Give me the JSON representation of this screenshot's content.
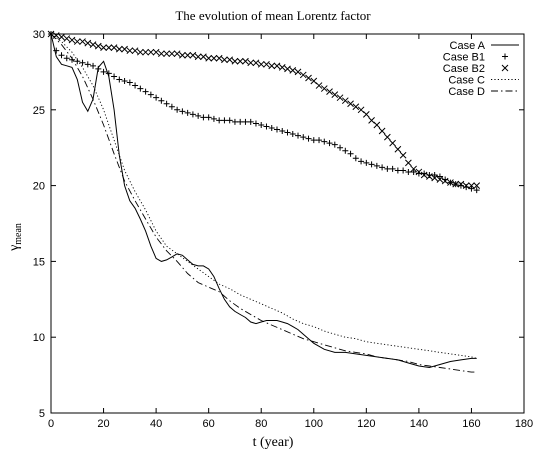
{
  "chart_data": {
    "type": "line",
    "title": "The evolution of mean Lorentz factor",
    "xlabel": "t (year)",
    "ylabel_main": "γ",
    "ylabel_sub": "mean",
    "xlim": [
      0,
      180
    ],
    "ylim": [
      5,
      30
    ],
    "x_ticks": [
      0,
      20,
      40,
      60,
      80,
      100,
      120,
      140,
      160,
      180
    ],
    "y_ticks": [
      5,
      10,
      15,
      20,
      25,
      30
    ],
    "grid": false,
    "legend_position": "top-right",
    "series": [
      {
        "name": "Case A",
        "style": "solid",
        "x": [
          0,
          2,
          4,
          6,
          8,
          10,
          12,
          14,
          16,
          18,
          20,
          22,
          24,
          26,
          28,
          30,
          32,
          34,
          36,
          38,
          40,
          42,
          44,
          46,
          48,
          50,
          52,
          54,
          56,
          58,
          60,
          62,
          64,
          66,
          68,
          70,
          72,
          74,
          76,
          78,
          80,
          82,
          84,
          86,
          88,
          90,
          92,
          94,
          96,
          98,
          100,
          104,
          108,
          112,
          116,
          120,
          124,
          128,
          132,
          136,
          140,
          144,
          148,
          152,
          156,
          160,
          162
        ],
        "y": [
          30,
          28.5,
          28,
          27.9,
          27.8,
          27.0,
          25.5,
          24.9,
          25.7,
          27.8,
          28.2,
          27.2,
          25.0,
          22.0,
          20.0,
          19.0,
          18.5,
          17.8,
          17.0,
          16.0,
          15.2,
          15.0,
          15.1,
          15.3,
          15.5,
          15.4,
          15.1,
          14.8,
          14.7,
          14.7,
          14.5,
          14.0,
          13.2,
          12.5,
          12.0,
          11.7,
          11.5,
          11.3,
          11.0,
          10.9,
          11.0,
          11.1,
          11.1,
          11.1,
          11.0,
          10.9,
          10.7,
          10.5,
          10.2,
          9.9,
          9.6,
          9.2,
          9.0,
          9.0,
          8.9,
          8.8,
          8.7,
          8.6,
          8.5,
          8.3,
          8.1,
          8.0,
          8.2,
          8.4,
          8.5,
          8.6,
          8.6
        ]
      },
      {
        "name": "Case B1",
        "style": "plus",
        "x": [
          0,
          2,
          4,
          6,
          8,
          10,
          12,
          14,
          16,
          18,
          20,
          22,
          24,
          26,
          28,
          30,
          32,
          34,
          36,
          38,
          40,
          42,
          44,
          46,
          48,
          50,
          52,
          54,
          56,
          58,
          60,
          62,
          64,
          66,
          68,
          70,
          72,
          74,
          76,
          78,
          80,
          82,
          84,
          86,
          88,
          90,
          92,
          94,
          96,
          98,
          100,
          102,
          104,
          106,
          108,
          110,
          112,
          114,
          116,
          118,
          120,
          122,
          124,
          126,
          128,
          130,
          132,
          134,
          136,
          138,
          140,
          142,
          144,
          146,
          148,
          150,
          152,
          154,
          156,
          158,
          160,
          162
        ],
        "y": [
          30,
          28.9,
          28.6,
          28.4,
          28.3,
          28.2,
          28.1,
          28.0,
          27.9,
          27.7,
          27.5,
          27.4,
          27.2,
          27.0,
          26.9,
          26.8,
          26.6,
          26.4,
          26.2,
          26.0,
          25.8,
          25.6,
          25.4,
          25.2,
          25.0,
          24.9,
          24.8,
          24.7,
          24.6,
          24.5,
          24.5,
          24.4,
          24.3,
          24.3,
          24.3,
          24.2,
          24.2,
          24.2,
          24.2,
          24.1,
          24.0,
          23.9,
          23.8,
          23.7,
          23.6,
          23.5,
          23.4,
          23.3,
          23.2,
          23.1,
          23.0,
          23.0,
          22.9,
          22.8,
          22.7,
          22.5,
          22.3,
          22.1,
          21.8,
          21.6,
          21.5,
          21.4,
          21.3,
          21.2,
          21.1,
          21.1,
          21.0,
          21.0,
          20.9,
          20.9,
          20.8,
          20.8,
          20.7,
          20.7,
          20.6,
          20.4,
          20.2,
          20.1,
          20.0,
          19.9,
          19.8,
          19.7
        ]
      },
      {
        "name": "Case B2",
        "style": "cross",
        "x": [
          0,
          2,
          4,
          6,
          8,
          10,
          12,
          14,
          16,
          18,
          20,
          22,
          24,
          26,
          28,
          30,
          32,
          34,
          36,
          38,
          40,
          42,
          44,
          46,
          48,
          50,
          52,
          54,
          56,
          58,
          60,
          62,
          64,
          66,
          68,
          70,
          72,
          74,
          76,
          78,
          80,
          82,
          84,
          86,
          88,
          90,
          92,
          94,
          96,
          98,
          100,
          102,
          104,
          106,
          108,
          110,
          112,
          114,
          116,
          118,
          120,
          122,
          124,
          126,
          128,
          130,
          132,
          134,
          136,
          138,
          140,
          142,
          144,
          146,
          148,
          150,
          152,
          154,
          156,
          158,
          160,
          162
        ],
        "y": [
          30,
          29.9,
          29.8,
          29.7,
          29.6,
          29.5,
          29.5,
          29.4,
          29.3,
          29.2,
          29.1,
          29.1,
          29.1,
          29.0,
          29.0,
          28.9,
          28.9,
          28.8,
          28.8,
          28.8,
          28.8,
          28.7,
          28.7,
          28.7,
          28.7,
          28.6,
          28.6,
          28.6,
          28.5,
          28.5,
          28.4,
          28.4,
          28.4,
          28.3,
          28.3,
          28.2,
          28.2,
          28.2,
          28.1,
          28.1,
          28.0,
          28.0,
          27.9,
          27.9,
          27.8,
          27.7,
          27.6,
          27.5,
          27.3,
          27.1,
          26.9,
          26.6,
          26.4,
          26.2,
          26.0,
          25.8,
          25.6,
          25.4,
          25.2,
          25.0,
          24.7,
          24.3,
          24.0,
          23.6,
          23.2,
          22.8,
          22.4,
          22.0,
          21.5,
          21.1,
          20.9,
          20.7,
          20.6,
          20.5,
          20.4,
          20.3,
          20.2,
          20.1,
          20.1,
          20.0,
          20.0,
          20.0
        ]
      },
      {
        "name": "Case C",
        "style": "dotted",
        "x": [
          0,
          4,
          8,
          12,
          16,
          20,
          24,
          28,
          32,
          36,
          40,
          44,
          48,
          52,
          56,
          60,
          64,
          68,
          72,
          76,
          80,
          84,
          88,
          92,
          96,
          100,
          104,
          108,
          112,
          116,
          120,
          124,
          128,
          132,
          136,
          140,
          144,
          148,
          152,
          156,
          160,
          162
        ],
        "y": [
          30,
          29.5,
          28.8,
          27.8,
          26.6,
          25.0,
          23.0,
          21.0,
          19.6,
          18.4,
          17.0,
          16.0,
          15.5,
          15.0,
          14.5,
          14.0,
          13.5,
          13.2,
          12.8,
          12.5,
          12.2,
          11.9,
          11.6,
          11.2,
          10.9,
          10.7,
          10.4,
          10.2,
          10.0,
          9.9,
          9.7,
          9.6,
          9.5,
          9.4,
          9.3,
          9.2,
          9.1,
          9.0,
          8.9,
          8.8,
          8.7,
          8.6
        ]
      },
      {
        "name": "Case D",
        "style": "dashdot",
        "x": [
          0,
          4,
          8,
          12,
          16,
          20,
          24,
          28,
          32,
          36,
          40,
          44,
          48,
          52,
          56,
          60,
          64,
          68,
          72,
          76,
          80,
          84,
          88,
          92,
          96,
          100,
          104,
          108,
          112,
          116,
          120,
          124,
          128,
          132,
          136,
          140,
          144,
          148,
          152,
          156,
          160,
          162
        ],
        "y": [
          30,
          29.3,
          28.4,
          27.2,
          25.7,
          24.0,
          22.1,
          20.3,
          19.0,
          17.8,
          16.6,
          15.7,
          15.0,
          14.2,
          13.6,
          13.3,
          13.0,
          12.4,
          11.9,
          11.5,
          11.1,
          10.8,
          10.5,
          10.2,
          9.9,
          9.7,
          9.5,
          9.3,
          9.1,
          9.0,
          8.9,
          8.7,
          8.6,
          8.5,
          8.4,
          8.2,
          8.1,
          8.0,
          7.9,
          7.8,
          7.7,
          7.7
        ]
      }
    ]
  }
}
